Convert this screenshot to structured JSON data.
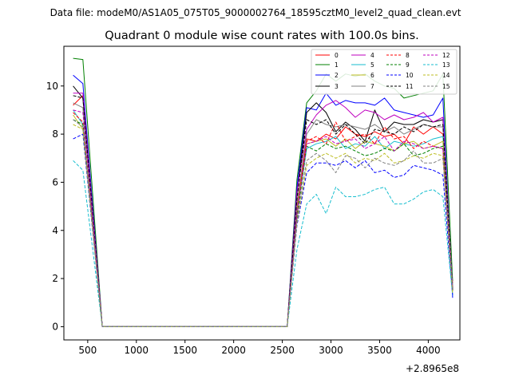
{
  "page": {
    "source_line": "Data file: modeM0/AS1A05_075T05_9000002764_18595cztM0_level2_quad_clean.evt"
  },
  "chart_data": {
    "type": "line",
    "title": "Quadrant 0 module wise count rates with 100.0s bins.",
    "xlabel": "",
    "ylabel": "",
    "x_offset_label": "+2.8965e8",
    "xlim": [
      255,
      4325
    ],
    "ylim": [
      -0.55,
      11.65
    ],
    "xticks": [
      500,
      1000,
      1500,
      2000,
      2500,
      3000,
      3500,
      4000
    ],
    "yticks": [
      0,
      2,
      4,
      6,
      8,
      10
    ],
    "grid": false,
    "legend_location": "top-right",
    "x": [
      350,
      450,
      650,
      750,
      850,
      950,
      1050,
      1150,
      1250,
      1350,
      1450,
      1550,
      1650,
      1750,
      1850,
      1950,
      2050,
      2150,
      2250,
      2350,
      2450,
      2550,
      2650,
      2750,
      2850,
      2950,
      3050,
      3150,
      3250,
      3350,
      3450,
      3550,
      3650,
      3750,
      3850,
      3950,
      4050,
      4150,
      4250
    ],
    "series": [
      {
        "name": "0",
        "color": "#ff0000",
        "dash": "solid",
        "values": [
          9.2,
          9.6,
          0,
          0,
          0,
          0,
          0,
          0,
          0,
          0,
          0,
          0,
          0,
          0,
          0,
          0,
          0,
          0,
          0,
          0,
          0,
          0,
          4.9,
          7.8,
          7.7,
          8.0,
          7.8,
          8.3,
          8.0,
          7.9,
          8.1,
          7.9,
          8.0,
          7.6,
          8.3,
          8.0,
          8.3,
          8.0,
          1.8
        ]
      },
      {
        "name": "1",
        "color": "#008000",
        "dash": "solid",
        "values": [
          11.15,
          11.1,
          0,
          0,
          0,
          0,
          0,
          0,
          0,
          0,
          0,
          0,
          0,
          0,
          0,
          0,
          0,
          0,
          0,
          0,
          0,
          0,
          6.1,
          9.3,
          9.8,
          10.5,
          10.2,
          10.5,
          10.4,
          10.5,
          10.2,
          10.0,
          9.9,
          9.5,
          9.6,
          9.7,
          9.8,
          10.5,
          1.9
        ]
      },
      {
        "name": "2",
        "color": "#0000ff",
        "dash": "solid",
        "values": [
          10.45,
          10.1,
          0,
          0,
          0,
          0,
          0,
          0,
          0,
          0,
          0,
          0,
          0,
          0,
          0,
          0,
          0,
          0,
          0,
          0,
          0,
          0,
          5.8,
          9.1,
          9.0,
          9.7,
          9.2,
          9.4,
          9.3,
          9.3,
          9.2,
          9.5,
          9.0,
          8.9,
          8.8,
          8.7,
          8.8,
          9.5,
          1.2
        ]
      },
      {
        "name": "3",
        "color": "#000000",
        "dash": "solid",
        "values": [
          10.0,
          9.5,
          0,
          0,
          0,
          0,
          0,
          0,
          0,
          0,
          0,
          0,
          0,
          0,
          0,
          0,
          0,
          0,
          0,
          0,
          0,
          0,
          5.5,
          8.9,
          9.3,
          8.9,
          8.1,
          8.5,
          8.2,
          7.7,
          9.0,
          8.1,
          8.5,
          8.4,
          8.4,
          8.6,
          8.5,
          8.6,
          1.5
        ]
      },
      {
        "name": "4",
        "color": "#bf00bf",
        "dash": "solid",
        "values": [
          9.7,
          9.7,
          0,
          0,
          0,
          0,
          0,
          0,
          0,
          0,
          0,
          0,
          0,
          0,
          0,
          0,
          0,
          0,
          0,
          0,
          0,
          0,
          5.6,
          8.2,
          8.8,
          9.2,
          9.4,
          9.1,
          8.7,
          9.0,
          8.9,
          8.6,
          8.8,
          8.6,
          8.7,
          8.9,
          8.5,
          8.7,
          1.6
        ]
      },
      {
        "name": "5",
        "color": "#17becf",
        "dash": "solid",
        "values": [
          9.0,
          8.4,
          0,
          0,
          0,
          0,
          0,
          0,
          0,
          0,
          0,
          0,
          0,
          0,
          0,
          0,
          0,
          0,
          0,
          0,
          0,
          0,
          4.7,
          7.4,
          7.6,
          7.7,
          7.9,
          7.4,
          7.6,
          7.5,
          7.9,
          7.4,
          7.7,
          7.6,
          7.5,
          7.6,
          7.8,
          7.9,
          1.7
        ]
      },
      {
        "name": "6",
        "color": "#bcbd22",
        "dash": "solid",
        "values": [
          8.8,
          8.2,
          0,
          0,
          0,
          0,
          0,
          0,
          0,
          0,
          0,
          0,
          0,
          0,
          0,
          0,
          0,
          0,
          0,
          0,
          0,
          0,
          4.8,
          7.6,
          7.7,
          7.8,
          7.5,
          7.8,
          7.4,
          7.7,
          7.6,
          7.5,
          7.3,
          7.6,
          7.7,
          7.4,
          7.5,
          7.7,
          1.6
        ]
      },
      {
        "name": "7",
        "color": "#808080",
        "dash": "solid",
        "values": [
          9.3,
          9.1,
          0,
          0,
          0,
          0,
          0,
          0,
          0,
          0,
          0,
          0,
          0,
          0,
          0,
          0,
          0,
          0,
          0,
          0,
          0,
          0,
          5.1,
          8.0,
          8.6,
          8.4,
          8.3,
          8.4,
          8.3,
          8.2,
          8.4,
          8.1,
          8.3,
          8.0,
          8.2,
          8.4,
          8.3,
          8.3,
          1.6
        ]
      },
      {
        "name": "8",
        "color": "#ff0000",
        "dash": "dashed",
        "values": [
          8.9,
          8.5,
          0,
          0,
          0,
          0,
          0,
          0,
          0,
          0,
          0,
          0,
          0,
          0,
          0,
          0,
          0,
          0,
          0,
          0,
          0,
          0,
          4.6,
          7.7,
          7.9,
          7.6,
          8.5,
          7.7,
          7.9,
          8.0,
          7.6,
          8.3,
          7.8,
          7.9,
          7.4,
          7.7,
          7.5,
          7.4,
          1.5
        ]
      },
      {
        "name": "9",
        "color": "#008000",
        "dash": "dashed",
        "values": [
          8.6,
          8.4,
          0,
          0,
          0,
          0,
          0,
          0,
          0,
          0,
          0,
          0,
          0,
          0,
          0,
          0,
          0,
          0,
          0,
          0,
          0,
          0,
          4.5,
          7.5,
          7.3,
          7.6,
          7.4,
          7.5,
          7.3,
          7.1,
          7.2,
          7.4,
          7.3,
          7.6,
          7.1,
          7.2,
          7.4,
          7.5,
          1.5
        ]
      },
      {
        "name": "10",
        "color": "#0000ff",
        "dash": "dashed",
        "values": [
          7.8,
          8.0,
          0,
          0,
          0,
          0,
          0,
          0,
          0,
          0,
          0,
          0,
          0,
          0,
          0,
          0,
          0,
          0,
          0,
          0,
          0,
          0,
          4.2,
          6.4,
          6.8,
          6.8,
          6.7,
          6.9,
          6.6,
          6.9,
          6.4,
          6.5,
          6.2,
          6.3,
          6.7,
          6.6,
          6.5,
          6.3,
          1.3
        ]
      },
      {
        "name": "11",
        "color": "#000000",
        "dash": "dashed",
        "values": [
          9.6,
          9.5,
          0,
          0,
          0,
          0,
          0,
          0,
          0,
          0,
          0,
          0,
          0,
          0,
          0,
          0,
          0,
          0,
          0,
          0,
          0,
          0,
          5.3,
          8.6,
          8.4,
          8.6,
          8.0,
          8.4,
          8.0,
          7.6,
          8.2,
          8.1,
          8.0,
          8.3,
          8.1,
          8.4,
          8.3,
          8.4,
          1.5
        ]
      },
      {
        "name": "12",
        "color": "#bf00bf",
        "dash": "dashed",
        "values": [
          9.0,
          8.9,
          0,
          0,
          0,
          0,
          0,
          0,
          0,
          0,
          0,
          0,
          0,
          0,
          0,
          0,
          0,
          0,
          0,
          0,
          0,
          0,
          4.7,
          7.6,
          7.7,
          7.9,
          7.6,
          7.7,
          7.8,
          7.4,
          7.6,
          7.9,
          7.3,
          7.7,
          7.6,
          7.4,
          7.5,
          7.4,
          1.6
        ]
      },
      {
        "name": "13",
        "color": "#17becf",
        "dash": "dashed",
        "values": [
          6.9,
          6.5,
          0,
          0,
          0,
          0,
          0,
          0,
          0,
          0,
          0,
          0,
          0,
          0,
          0,
          0,
          0,
          0,
          0,
          0,
          0,
          0,
          3.2,
          5.1,
          5.5,
          4.7,
          5.8,
          5.4,
          5.4,
          5.5,
          5.7,
          5.8,
          5.1,
          5.1,
          5.3,
          5.6,
          5.7,
          5.4,
          1.3
        ]
      },
      {
        "name": "14",
        "color": "#bcbd22",
        "dash": "dashed",
        "values": [
          8.4,
          8.2,
          0,
          0,
          0,
          0,
          0,
          0,
          0,
          0,
          0,
          0,
          0,
          0,
          0,
          0,
          0,
          0,
          0,
          0,
          0,
          0,
          4.3,
          6.7,
          7.0,
          7.2,
          7.0,
          7.2,
          6.8,
          7.0,
          6.9,
          7.2,
          6.8,
          6.9,
          7.1,
          7.0,
          7.2,
          7.1,
          1.4
        ]
      },
      {
        "name": "15",
        "color": "#808080",
        "dash": "dashed",
        "values": [
          8.6,
          8.3,
          0,
          0,
          0,
          0,
          0,
          0,
          0,
          0,
          0,
          0,
          0,
          0,
          0,
          0,
          0,
          0,
          0,
          0,
          0,
          0,
          4.4,
          6.9,
          7.2,
          6.9,
          6.4,
          7.1,
          7.0,
          6.6,
          7.0,
          6.8,
          6.7,
          6.9,
          7.3,
          6.8,
          6.8,
          7.0,
          1.5
        ]
      }
    ]
  }
}
